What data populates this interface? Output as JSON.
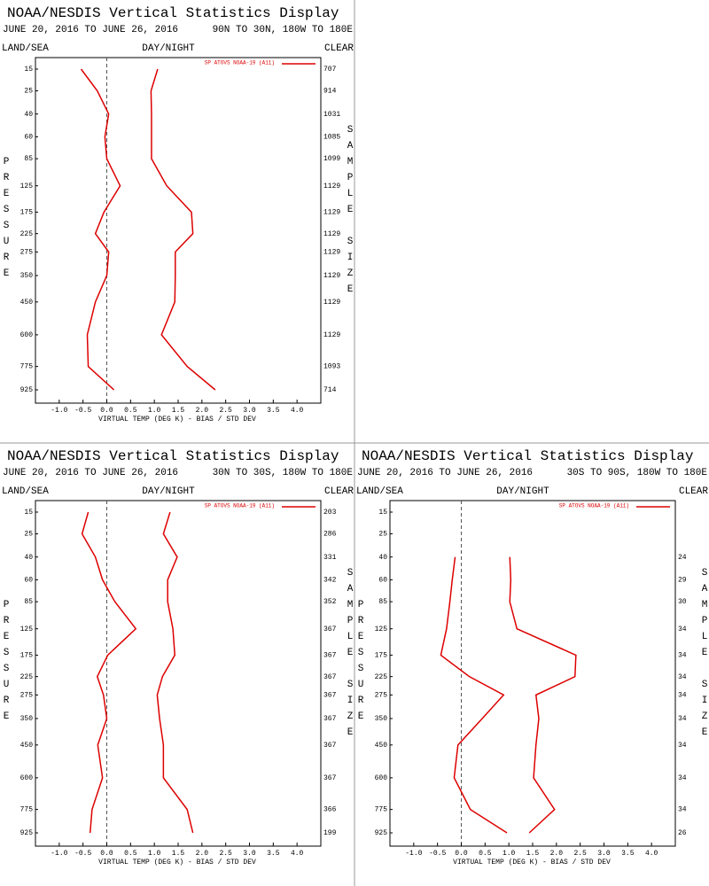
{
  "chart_data": [
    {
      "type": "line",
      "title": "NOAA/NESDIS Vertical Statistics Display",
      "subtitle": "JUNE 20, 2016 TO JUNE 26, 2016",
      "region": "90N TO 30N, 180W TO 180E",
      "land_sea": "LAND/SEA",
      "day_night": "DAY/NIGHT",
      "clear": "CLEAR",
      "ylabel": "PRESSURE",
      "y2label": "SAMPLE SIZE",
      "xlabel": "VIRTUAL TEMP (DEG K) - BIAS / STD DEV",
      "y": [
        15,
        25,
        40,
        60,
        85,
        125,
        175,
        225,
        275,
        350,
        450,
        600,
        775,
        925
      ],
      "ylim": [
        15,
        925
      ],
      "yticks": [
        15,
        25,
        40,
        60,
        85,
        125,
        175,
        225,
        275,
        350,
        450,
        600,
        775,
        925
      ],
      "xlim": [
        -1.5,
        4.5
      ],
      "xticks": [
        {
          "value": -1,
          "label": "-1.0"
        },
        {
          "value": -0.5,
          "label": "-0.5"
        },
        {
          "value": 0,
          "label": "0.0"
        },
        {
          "value": 0.5,
          "label": "0.5"
        },
        {
          "value": 1,
          "label": "1.0"
        },
        {
          "value": 1.5,
          "label": "1.5"
        },
        {
          "value": 2,
          "label": "2.0"
        },
        {
          "value": 2.5,
          "label": "2.5"
        },
        {
          "value": 3,
          "label": "3.0"
        },
        {
          "value": 3.5,
          "label": "3.5"
        },
        {
          "value": 4,
          "label": "4.0"
        }
      ],
      "series": [
        {
          "name": "SP ATOVS NOAA-19 (A11)",
          "color": "#dd0000",
          "values": [
            -0.54,
            -0.2,
            0.04,
            -0.04,
            0.0,
            0.28,
            -0.06,
            -0.24,
            0.04,
            0.0,
            -0.24,
            -0.41,
            -0.39,
            0.15
          ],
          "std_dev": [
            1.07,
            0.93,
            0.94,
            0.94,
            0.94,
            1.26,
            1.78,
            1.81,
            1.44,
            1.44,
            1.43,
            1.15,
            1.69,
            2.28
          ]
        }
      ],
      "sample_sizes": [
        707,
        914,
        1031,
        1085,
        1099,
        1129,
        1129,
        1129,
        1129,
        1129,
        1129,
        1129,
        1093,
        714
      ],
      "grid": false
    },
    {
      "type": "line",
      "title": "NOAA/NESDIS Vertical Statistics Display",
      "subtitle": "JUNE 20, 2016 TO JUNE 26, 2016",
      "region": "30N TO 30S, 180W TO 180E",
      "land_sea": "LAND/SEA",
      "day_night": "DAY/NIGHT",
      "clear": "CLEAR",
      "ylabel": "PRESSURE",
      "y2label": "SAMPLE SIZE",
      "xlabel": "VIRTUAL TEMP (DEG K) - BIAS / STD DEV",
      "y": [
        15,
        25,
        40,
        60,
        85,
        125,
        175,
        225,
        275,
        350,
        450,
        600,
        775,
        925
      ],
      "ylim": [
        15,
        925
      ],
      "yticks": [
        15,
        25,
        40,
        60,
        85,
        125,
        175,
        225,
        275,
        350,
        450,
        600,
        775,
        925
      ],
      "xlim": [
        -1.5,
        4.5
      ],
      "xticks": [
        {
          "value": -1,
          "label": "-1.0"
        },
        {
          "value": -0.5,
          "label": "-0.5"
        },
        {
          "value": 0,
          "label": "0.0"
        },
        {
          "value": 0.5,
          "label": "0.5"
        },
        {
          "value": 1,
          "label": "1.0"
        },
        {
          "value": 1.5,
          "label": "1.5"
        },
        {
          "value": 2,
          "label": "2.0"
        },
        {
          "value": 2.5,
          "label": "2.5"
        },
        {
          "value": 3,
          "label": "3.0"
        },
        {
          "value": 3.5,
          "label": "3.5"
        },
        {
          "value": 4,
          "label": "4.0"
        }
      ],
      "series": [
        {
          "name": "SP ATOVS NOAA-19 (A11)",
          "color": "#dd0000",
          "values": [
            -0.39,
            -0.52,
            -0.24,
            -0.09,
            0.17,
            0.61,
            0.02,
            -0.2,
            -0.07,
            0.0,
            -0.19,
            -0.09,
            -0.31,
            -0.35
          ],
          "std_dev": [
            1.33,
            1.19,
            1.48,
            1.28,
            1.28,
            1.39,
            1.43,
            1.17,
            1.06,
            1.11,
            1.19,
            1.19,
            1.69,
            1.81
          ]
        }
      ],
      "sample_sizes": [
        203,
        286,
        331,
        342,
        352,
        367,
        367,
        367,
        367,
        367,
        367,
        367,
        366,
        199
      ],
      "grid": false
    },
    {
      "type": "line",
      "title": "NOAA/NESDIS Vertical Statistics Display",
      "subtitle": "JUNE 20, 2016 TO JUNE 26, 2016",
      "region": "30S TO 90S, 180W TO 180E",
      "land_sea": "LAND/SEA",
      "day_night": "DAY/NIGHT",
      "clear": "CLEAR",
      "ylabel": "PRESSURE",
      "y2label": "SAMPLE SIZE",
      "xlabel": "VIRTUAL TEMP (DEG K) - BIAS / STD DEV",
      "y": [
        15,
        25,
        40,
        60,
        85,
        125,
        175,
        225,
        275,
        350,
        450,
        600,
        775,
        925
      ],
      "ylim": [
        15,
        925
      ],
      "yticks": [
        15,
        25,
        40,
        60,
        85,
        125,
        175,
        225,
        275,
        350,
        450,
        600,
        775,
        925
      ],
      "xlim": [
        -1.5,
        4.5
      ],
      "xticks": [
        {
          "value": -1,
          "label": "-1.0"
        },
        {
          "value": -0.5,
          "label": "-0.5"
        },
        {
          "value": 0,
          "label": "0.0"
        },
        {
          "value": 0.5,
          "label": "0.5"
        },
        {
          "value": 1,
          "label": "1.0"
        },
        {
          "value": 1.5,
          "label": "1.5"
        },
        {
          "value": 2,
          "label": "2.0"
        },
        {
          "value": 2.5,
          "label": "2.5"
        },
        {
          "value": 3,
          "label": "3.0"
        },
        {
          "value": 3.5,
          "label": "3.5"
        },
        {
          "value": 4,
          "label": "4.0"
        }
      ],
      "series": [
        {
          "name": "SP ATOVS NOAA-19 (A11)",
          "color": "#dd0000",
          "values": [
            null,
            null,
            -0.13,
            -0.19,
            -0.24,
            -0.31,
            -0.43,
            0.17,
            0.89,
            0.44,
            -0.07,
            -0.15,
            0.19,
            0.96
          ],
          "std_dev": [
            null,
            null,
            1.02,
            1.04,
            1.02,
            1.17,
            2.41,
            2.39,
            1.57,
            1.63,
            1.57,
            1.52,
            1.96,
            1.43
          ]
        }
      ],
      "sample_sizes": [
        null,
        null,
        24,
        29,
        30,
        34,
        34,
        34,
        34,
        34,
        34,
        34,
        34,
        26
      ],
      "grid": false
    }
  ]
}
